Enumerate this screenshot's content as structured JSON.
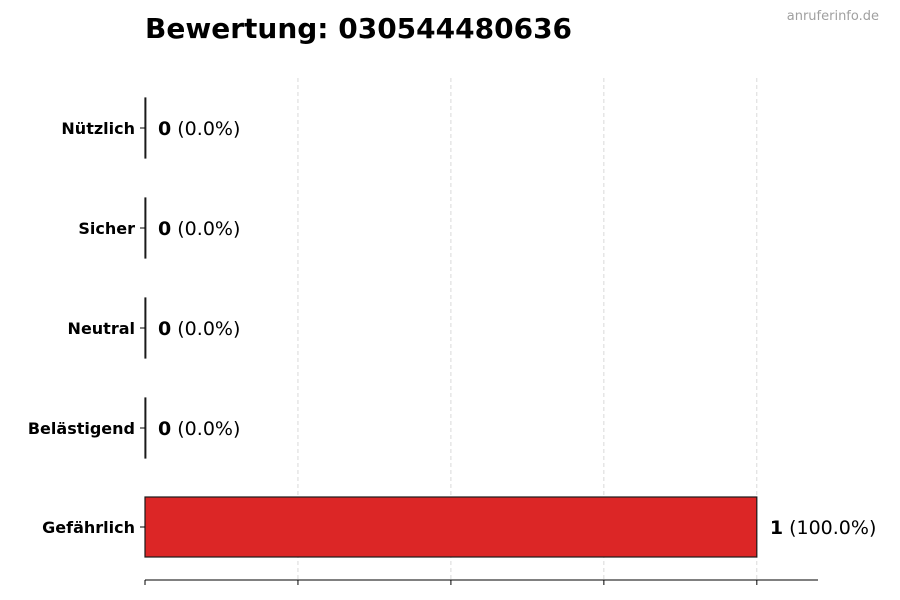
{
  "title": "Bewertung: 030544480636",
  "watermark": "anruferinfo.de",
  "chart_data": {
    "type": "bar",
    "orientation": "horizontal",
    "title": "Bewertung: 030544480636",
    "categories": [
      "Nützlich",
      "Sicher",
      "Neutral",
      "Belästigend",
      "Gefährlich"
    ],
    "values": [
      0,
      0,
      0,
      0,
      1
    ],
    "value_labels": [
      {
        "count": "0",
        "percent": "(0.0%)"
      },
      {
        "count": "0",
        "percent": "(0.0%)"
      },
      {
        "count": "0",
        "percent": "(0.0%)"
      },
      {
        "count": "0",
        "percent": "(0.0%)"
      },
      {
        "count": "1",
        "percent": "(100.0%)"
      }
    ],
    "xlim": [
      0,
      1.1
    ],
    "x_grid_step": 0.25,
    "grid": "vertical dashed",
    "xlabel": "",
    "ylabel": "",
    "bar_color": "#dc2626",
    "edge_color": "#1a1a1a"
  }
}
